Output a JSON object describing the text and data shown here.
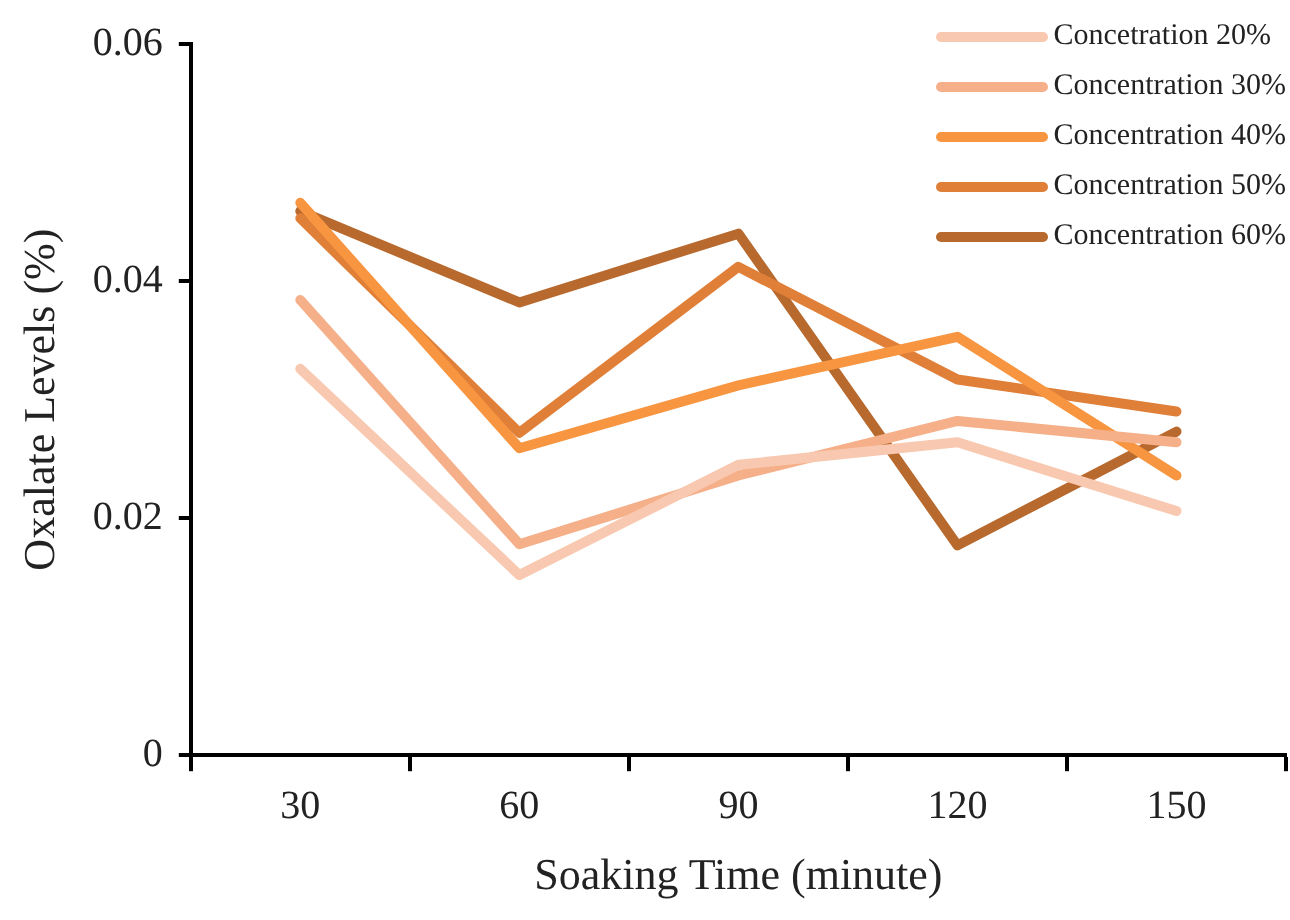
{
  "chart_data": {
    "type": "line",
    "xlabel": "Soaking Time (minute)",
    "ylabel": "Oxalate Levels (%)",
    "categories": [
      "30",
      "60",
      "90",
      "120",
      "150"
    ],
    "ylim": [
      0,
      0.06
    ],
    "yticks": [
      0,
      0.02,
      0.04,
      0.06
    ],
    "grid": false,
    "legend": "top right",
    "marker": "none",
    "line_style": "solid",
    "series": [
      {
        "name": "Concetration 20%",
        "color": "#f8c9b0",
        "values": [
          0.0326,
          0.0152,
          0.0245,
          0.0264,
          0.0206
        ]
      },
      {
        "name": "Concentration 30%",
        "color": "#f5b08a",
        "values": [
          0.0384,
          0.0178,
          0.0236,
          0.0282,
          0.0264
        ]
      },
      {
        "name": "Concentration 40%",
        "color": "#f79540",
        "values": [
          0.0466,
          0.0259,
          0.0312,
          0.0353,
          0.0236
        ]
      },
      {
        "name": "Concentration 50%",
        "color": "#e07f38",
        "values": [
          0.0453,
          0.0272,
          0.0412,
          0.0317,
          0.029
        ]
      },
      {
        "name": "Concentration 60%",
        "color": "#b8692e",
        "values": [
          0.0459,
          0.0382,
          0.044,
          0.0177,
          0.0273
        ]
      }
    ]
  }
}
